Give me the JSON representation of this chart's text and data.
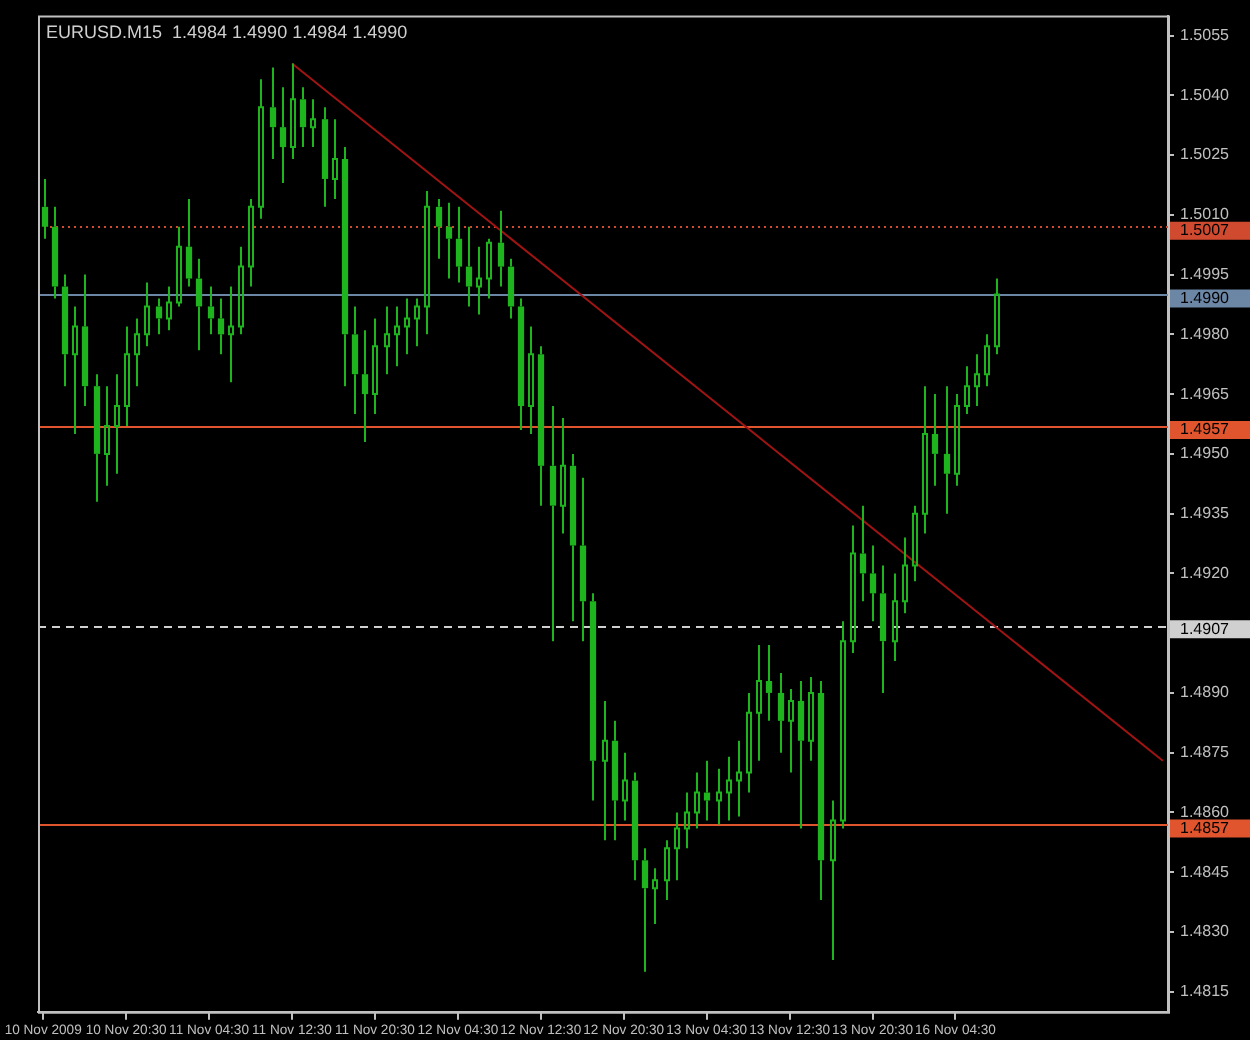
{
  "chart_data": {
    "type": "candlestick",
    "title": "EURUSD.M15  1.4984 1.4990 1.4984 1.4990",
    "color": "#1eb41e",
    "categories": [
      "10 Nov 2009",
      null,
      null,
      null,
      null,
      null,
      null,
      null,
      "10 Nov 20:30",
      null,
      null,
      null,
      null,
      null,
      null,
      null,
      "11 Nov 04:30",
      null,
      null,
      null,
      null,
      null,
      null,
      null,
      "11 Nov 12:30",
      null,
      null,
      null,
      null,
      null,
      null,
      null,
      "11 Nov 20:30",
      null,
      null,
      null,
      null,
      null,
      null,
      null,
      "12 Nov 04:30",
      null,
      null,
      null,
      null,
      null,
      null,
      null,
      "12 Nov 12:30",
      null,
      null,
      null,
      null,
      null,
      null,
      null,
      "12 Nov 20:30",
      null,
      null,
      null,
      null,
      null,
      null,
      null,
      "13 Nov 04:30",
      null,
      null,
      null,
      null,
      null,
      null,
      null,
      "13 Nov 12:30",
      null,
      null,
      null,
      null,
      null,
      null,
      null,
      "13 Nov 20:30",
      null,
      null,
      null,
      null,
      null,
      null,
      null,
      "16 Nov 04:30",
      null,
      null,
      null,
      null,
      null,
      null,
      null,
      null,
      null,
      null,
      null,
      null,
      null,
      null,
      null,
      null,
      null,
      null,
      null,
      null
    ],
    "ohlc": [
      [
        1.5012,
        1.5019,
        1.5004,
        1.5007
      ],
      [
        1.5007,
        1.5012,
        1.4989,
        1.4992
      ],
      [
        1.4992,
        1.4995,
        1.4967,
        1.4975
      ],
      [
        1.4975,
        1.4987,
        1.4955,
        1.4982
      ],
      [
        1.4982,
        1.4995,
        1.4962,
        1.4967
      ],
      [
        1.4967,
        1.497,
        1.4938,
        1.495
      ],
      [
        1.495,
        1.4967,
        1.4942,
        1.4957
      ],
      [
        1.4957,
        1.497,
        1.4945,
        1.4962
      ],
      [
        1.4962,
        1.4982,
        1.4957,
        1.4975
      ],
      [
        1.4975,
        1.4984,
        1.4967,
        1.498
      ],
      [
        1.498,
        1.4993,
        1.4977,
        1.4987
      ],
      [
        1.4987,
        1.4989,
        1.498,
        1.4984
      ],
      [
        1.4984,
        1.4992,
        1.4981,
        1.4988
      ],
      [
        1.4988,
        1.5007,
        1.4987,
        1.5002
      ],
      [
        1.5002,
        1.5014,
        1.4992,
        1.4994
      ],
      [
        1.4994,
        1.4999,
        1.4976,
        1.4987
      ],
      [
        1.4987,
        1.4992,
        1.498,
        1.4984
      ],
      [
        1.4984,
        1.4989,
        1.4975,
        1.498
      ],
      [
        1.498,
        1.4992,
        1.4968,
        1.4982
      ],
      [
        1.4982,
        1.5002,
        1.498,
        1.4997
      ],
      [
        1.4997,
        1.5014,
        1.4992,
        1.5012
      ],
      [
        1.5012,
        1.5044,
        1.5009,
        1.5037
      ],
      [
        1.5037,
        1.5047,
        1.5024,
        1.5032
      ],
      [
        1.5032,
        1.5042,
        1.5018,
        1.5027
      ],
      [
        1.5027,
        1.5048,
        1.5024,
        1.5039
      ],
      [
        1.5039,
        1.5042,
        1.5027,
        1.5032
      ],
      [
        1.5032,
        1.5039,
        1.5027,
        1.5034
      ],
      [
        1.5034,
        1.5037,
        1.5012,
        1.5019
      ],
      [
        1.5019,
        1.5034,
        1.5014,
        1.5024
      ],
      [
        1.5024,
        1.5027,
        1.4967,
        1.498
      ],
      [
        1.498,
        1.4987,
        1.496,
        1.497
      ],
      [
        1.497,
        1.4981,
        1.4953,
        1.4965
      ],
      [
        1.4965,
        1.4984,
        1.496,
        1.4977
      ],
      [
        1.4977,
        1.4987,
        1.497,
        1.498
      ],
      [
        1.498,
        1.4987,
        1.4972,
        1.4982
      ],
      [
        1.4982,
        1.4989,
        1.4975,
        1.4984
      ],
      [
        1.4984,
        1.4989,
        1.4977,
        1.4987
      ],
      [
        1.4987,
        1.5016,
        1.498,
        1.5012
      ],
      [
        1.5012,
        1.5014,
        1.4999,
        1.5007
      ],
      [
        1.5007,
        1.5013,
        1.4994,
        1.5004
      ],
      [
        1.5004,
        1.5012,
        1.4993,
        1.4997
      ],
      [
        1.4997,
        1.5007,
        1.4987,
        1.4992
      ],
      [
        1.4992,
        1.5002,
        1.4985,
        1.4994
      ],
      [
        1.4994,
        1.5004,
        1.4989,
        1.5003
      ],
      [
        1.5003,
        1.5011,
        1.4992,
        1.4997
      ],
      [
        1.4997,
        1.4999,
        1.4984,
        1.4987
      ],
      [
        1.4987,
        1.4989,
        1.4956,
        1.4962
      ],
      [
        1.4962,
        1.4982,
        1.4955,
        1.4975
      ],
      [
        1.4975,
        1.4977,
        1.4937,
        1.4947
      ],
      [
        1.4947,
        1.4962,
        1.4903,
        1.4937
      ],
      [
        1.4937,
        1.4959,
        1.493,
        1.4947
      ],
      [
        1.4947,
        1.495,
        1.4908,
        1.4927
      ],
      [
        1.4927,
        1.4944,
        1.4903,
        1.4913
      ],
      [
        1.4913,
        1.4915,
        1.4863,
        1.4873
      ],
      [
        1.4873,
        1.4888,
        1.4853,
        1.4878
      ],
      [
        1.4878,
        1.4883,
        1.4853,
        1.4863
      ],
      [
        1.4863,
        1.4875,
        1.4858,
        1.4868
      ],
      [
        1.4868,
        1.487,
        1.4843,
        1.4848
      ],
      [
        1.4848,
        1.4851,
        1.482,
        1.4841
      ],
      [
        1.4841,
        1.4846,
        1.4832,
        1.4843
      ],
      [
        1.4843,
        1.4853,
        1.4838,
        1.4851
      ],
      [
        1.4851,
        1.486,
        1.4843,
        1.4856
      ],
      [
        1.4856,
        1.4865,
        1.4851,
        1.486
      ],
      [
        1.486,
        1.487,
        1.4856,
        1.4865
      ],
      [
        1.4865,
        1.4873,
        1.4858,
        1.4863
      ],
      [
        1.4863,
        1.4871,
        1.4857,
        1.4865
      ],
      [
        1.4865,
        1.4874,
        1.4858,
        1.4868
      ],
      [
        1.4868,
        1.4878,
        1.4859,
        1.487
      ],
      [
        1.487,
        1.489,
        1.4865,
        1.4885
      ],
      [
        1.4885,
        1.4902,
        1.4873,
        1.4893
      ],
      [
        1.4893,
        1.4902,
        1.4883,
        1.489
      ],
      [
        1.489,
        1.4895,
        1.4875,
        1.4883
      ],
      [
        1.4883,
        1.4891,
        1.487,
        1.4888
      ],
      [
        1.4888,
        1.4893,
        1.4856,
        1.4878
      ],
      [
        1.4878,
        1.4894,
        1.4873,
        1.489
      ],
      [
        1.489,
        1.4893,
        1.4838,
        1.4848
      ],
      [
        1.4848,
        1.4863,
        1.4823,
        1.4858
      ],
      [
        1.4858,
        1.4908,
        1.4856,
        1.4903
      ],
      [
        1.4903,
        1.4932,
        1.49,
        1.4925
      ],
      [
        1.4925,
        1.4937,
        1.4913,
        1.492
      ],
      [
        1.492,
        1.4927,
        1.4908,
        1.4915
      ],
      [
        1.4915,
        1.4922,
        1.489,
        1.4903
      ],
      [
        1.4903,
        1.492,
        1.4898,
        1.4913
      ],
      [
        1.4913,
        1.4929,
        1.491,
        1.4922
      ],
      [
        1.4922,
        1.4937,
        1.4918,
        1.4935
      ],
      [
        1.4935,
        1.4967,
        1.493,
        1.4955
      ],
      [
        1.4955,
        1.4965,
        1.4942,
        1.495
      ],
      [
        1.495,
        1.4967,
        1.4935,
        1.4945
      ],
      [
        1.4945,
        1.4965,
        1.4942,
        1.4962
      ],
      [
        1.4962,
        1.4972,
        1.496,
        1.4967
      ],
      [
        1.4967,
        1.4975,
        1.4962,
        1.497
      ],
      [
        1.497,
        1.498,
        1.4967,
        1.4977
      ],
      [
        1.4977,
        1.4994,
        1.4975,
        1.499
      ],
      null,
      null,
      null,
      null,
      null,
      null,
      null,
      null,
      null,
      null,
      null,
      null,
      null,
      null,
      null,
      null
    ],
    "series": [
      {
        "type": "line",
        "color": "#a01414",
        "values": [
          null,
          null,
          null,
          null,
          null,
          null,
          null,
          null,
          null,
          null,
          null,
          null,
          null,
          null,
          null,
          null,
          null,
          null,
          null,
          null,
          null,
          null,
          null,
          null,
          1.5048,
          null,
          null,
          null,
          null,
          null,
          null,
          null,
          null,
          null,
          null,
          null,
          null,
          null,
          null,
          null,
          null,
          null,
          null,
          null,
          null,
          null,
          null,
          null,
          null,
          null,
          null,
          null,
          null,
          null,
          null,
          null,
          null,
          null,
          null,
          null,
          null,
          null,
          null,
          null,
          null,
          null,
          null,
          null,
          null,
          null,
          null,
          null,
          null,
          null,
          null,
          null,
          null,
          null,
          null,
          null,
          null,
          null,
          null,
          null,
          null,
          null,
          null,
          null,
          null,
          null,
          null,
          null,
          null,
          null,
          null,
          null,
          null,
          null,
          null,
          null,
          null,
          null,
          null,
          null,
          null,
          null,
          null,
          null,
          1.4873
        ]
      }
    ],
    "ylim": [
      1.481,
      1.506
    ],
    "yticks": [
      1.4815,
      {
        "value": 1.483,
        "label": "1.4830"
      },
      1.4845,
      {
        "value": 1.486,
        "label": "1.4860"
      },
      1.4875,
      {
        "value": 1.489,
        "label": "1.4890"
      },
      {
        "value": 1.492,
        "label": "1.4920"
      },
      1.4935,
      {
        "value": 1.495,
        "label": "1.4950"
      },
      1.4965,
      {
        "value": 1.498,
        "label": "1.4980"
      },
      1.4995,
      {
        "value": 1.501,
        "label": "1.5010"
      },
      1.5025,
      {
        "value": 1.504,
        "label": "1.5040"
      },
      1.5055
    ],
    "ref_lines": [
      {
        "axis": "y",
        "value": 1.5007,
        "label": "1.5007",
        "color": "#d04a30",
        "line_style": "dotted"
      },
      {
        "axis": "y",
        "value": 1.499,
        "label": "1.4990",
        "color": "#6c86a6",
        "line_style": "solid"
      },
      {
        "axis": "y",
        "value": 1.4957,
        "label": "1.4957",
        "color": "#e0552e",
        "line_style": "solid"
      },
      {
        "axis": "y",
        "value": 1.4907,
        "label": "1.4907",
        "color": "#d0d0d0",
        "line_style": "dashed"
      },
      {
        "axis": "y",
        "value": 1.4857,
        "label": "1.4857",
        "color": "#e0552e",
        "line_style": "solid"
      }
    ]
  }
}
